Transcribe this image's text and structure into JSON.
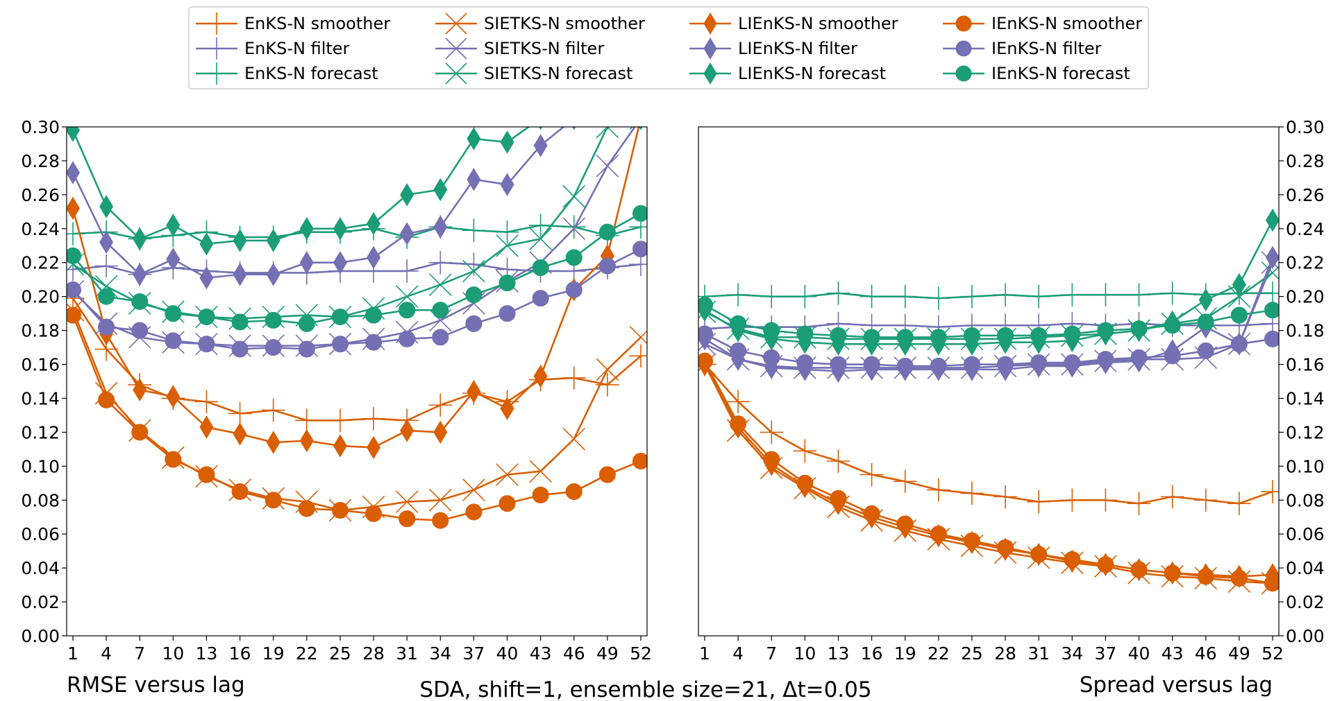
{
  "colors": {
    "smoother": "#d95f02",
    "filter": "#7570b3",
    "forecast": "#1b9e77"
  },
  "marker_icons": {
    "EnKS-N": "plus-marker",
    "SIETKS-N": "x-marker",
    "LIEnKS-N": "thin-diamond-marker",
    "IEnKS-N": "circle-marker"
  },
  "legend": [
    {
      "label": "EnKS-N smoother",
      "method": "EnKS-N",
      "kind": "smoother"
    },
    {
      "label": "EnKS-N filter",
      "method": "EnKS-N",
      "kind": "filter"
    },
    {
      "label": "EnKS-N forecast",
      "method": "EnKS-N",
      "kind": "forecast"
    },
    {
      "label": "SIETKS-N smoother",
      "method": "SIETKS-N",
      "kind": "smoother"
    },
    {
      "label": "SIETKS-N filter",
      "method": "SIETKS-N",
      "kind": "filter"
    },
    {
      "label": "SIETKS-N forecast",
      "method": "SIETKS-N",
      "kind": "forecast"
    },
    {
      "label": "LIEnKS-N smoother",
      "method": "LIEnKS-N",
      "kind": "smoother"
    },
    {
      "label": "LIEnKS-N filter",
      "method": "LIEnKS-N",
      "kind": "filter"
    },
    {
      "label": "LIEnKS-N forecast",
      "method": "LIEnKS-N",
      "kind": "forecast"
    },
    {
      "label": "IEnKS-N smoother",
      "method": "IEnKS-N",
      "kind": "smoother"
    },
    {
      "label": "IEnKS-N filter",
      "method": "IEnKS-N",
      "kind": "filter"
    },
    {
      "label": "IEnKS-N forecast",
      "method": "IEnKS-N",
      "kind": "forecast"
    }
  ],
  "suptitle": "SDA, shift=1, ensemble size=21, Δt=0.05",
  "chart_data": [
    {
      "type": "line",
      "title": "RMSE versus lag",
      "y_axis_side": "left",
      "x": [
        1,
        4,
        7,
        10,
        13,
        16,
        19,
        22,
        25,
        28,
        31,
        34,
        37,
        40,
        43,
        46,
        49,
        52
      ],
      "xticks": [
        "1",
        "4",
        "7",
        "10",
        "13",
        "16",
        "19",
        "22",
        "25",
        "28",
        "31",
        "34",
        "37",
        "40",
        "43",
        "46",
        "49",
        "52"
      ],
      "ylim": [
        0.0,
        0.3
      ],
      "yticks": [
        "0.00",
        "0.02",
        "0.04",
        "0.06",
        "0.08",
        "0.10",
        "0.12",
        "0.14",
        "0.16",
        "0.18",
        "0.20",
        "0.22",
        "0.24",
        "0.26",
        "0.28",
        "0.30"
      ],
      "series": [
        {
          "name": "EnKS-N smoother",
          "method": "EnKS-N",
          "kind": "smoother",
          "values": [
            0.199,
            0.169,
            0.148,
            0.14,
            0.138,
            0.131,
            0.133,
            0.127,
            0.127,
            0.128,
            0.127,
            0.136,
            0.143,
            0.138,
            0.151,
            0.152,
            0.148,
            0.165
          ]
        },
        {
          "name": "EnKS-N filter",
          "method": "EnKS-N",
          "kind": "filter",
          "values": [
            0.216,
            0.218,
            0.213,
            0.217,
            0.215,
            0.214,
            0.214,
            0.214,
            0.215,
            0.215,
            0.215,
            0.22,
            0.219,
            0.216,
            0.215,
            0.215,
            0.217,
            0.219
          ]
        },
        {
          "name": "EnKS-N forecast",
          "method": "EnKS-N",
          "kind": "forecast",
          "values": [
            0.237,
            0.238,
            0.234,
            0.236,
            0.238,
            0.235,
            0.235,
            0.238,
            0.238,
            0.24,
            0.235,
            0.241,
            0.239,
            0.238,
            0.242,
            0.241,
            0.236,
            0.241
          ]
        },
        {
          "name": "SIETKS-N smoother",
          "method": "SIETKS-N",
          "kind": "smoother",
          "values": [
            0.192,
            0.143,
            0.121,
            0.105,
            0.094,
            0.086,
            0.081,
            0.079,
            0.074,
            0.076,
            0.079,
            0.08,
            0.086,
            0.095,
            0.097,
            0.116,
            0.157,
            0.176
          ]
        },
        {
          "name": "SIETKS-N filter",
          "method": "SIETKS-N",
          "kind": "filter",
          "values": [
            0.203,
            0.184,
            0.176,
            0.173,
            0.172,
            0.171,
            0.171,
            0.171,
            0.172,
            0.175,
            0.179,
            0.186,
            0.196,
            0.209,
            0.22,
            0.24,
            0.277,
            0.305
          ]
        },
        {
          "name": "SIETKS-N forecast",
          "method": "SIETKS-N",
          "kind": "forecast",
          "values": [
            0.219,
            0.206,
            0.196,
            0.191,
            0.188,
            0.187,
            0.188,
            0.189,
            0.188,
            0.193,
            0.2,
            0.207,
            0.215,
            0.23,
            0.234,
            0.259,
            0.3,
            0.305
          ]
        },
        {
          "name": "LIEnKS-N smoother",
          "method": "LIEnKS-N",
          "kind": "smoother",
          "values": [
            0.252,
            0.178,
            0.145,
            0.141,
            0.123,
            0.119,
            0.114,
            0.115,
            0.112,
            0.111,
            0.121,
            0.12,
            0.144,
            0.134,
            0.153,
            0.204,
            0.224,
            0.305
          ]
        },
        {
          "name": "LIEnKS-N filter",
          "method": "LIEnKS-N",
          "kind": "filter",
          "values": [
            0.273,
            0.232,
            0.213,
            0.222,
            0.211,
            0.213,
            0.213,
            0.22,
            0.22,
            0.223,
            0.237,
            0.241,
            0.269,
            0.266,
            0.289,
            0.305,
            0.305,
            0.305
          ]
        },
        {
          "name": "LIEnKS-N forecast",
          "method": "LIEnKS-N",
          "kind": "forecast",
          "values": [
            0.298,
            0.253,
            0.234,
            0.242,
            0.231,
            0.233,
            0.233,
            0.24,
            0.24,
            0.243,
            0.26,
            0.263,
            0.293,
            0.291,
            0.305,
            0.305,
            0.305,
            0.305
          ]
        },
        {
          "name": "IEnKS-N smoother",
          "method": "IEnKS-N",
          "kind": "smoother",
          "values": [
            0.189,
            0.139,
            0.12,
            0.104,
            0.095,
            0.085,
            0.08,
            0.075,
            0.074,
            0.072,
            0.069,
            0.068,
            0.073,
            0.078,
            0.083,
            0.085,
            0.095,
            0.103
          ]
        },
        {
          "name": "IEnKS-N filter",
          "method": "IEnKS-N",
          "kind": "filter",
          "values": [
            0.204,
            0.182,
            0.18,
            0.174,
            0.172,
            0.169,
            0.17,
            0.169,
            0.172,
            0.173,
            0.175,
            0.176,
            0.184,
            0.19,
            0.199,
            0.204,
            0.218,
            0.228
          ]
        },
        {
          "name": "IEnKS-N forecast",
          "method": "IEnKS-N",
          "kind": "forecast",
          "values": [
            0.224,
            0.2,
            0.197,
            0.19,
            0.188,
            0.185,
            0.186,
            0.184,
            0.188,
            0.189,
            0.192,
            0.192,
            0.201,
            0.208,
            0.217,
            0.223,
            0.238,
            0.249
          ]
        }
      ]
    },
    {
      "type": "line",
      "title": "Spread versus lag",
      "y_axis_side": "right",
      "x": [
        1,
        4,
        7,
        10,
        13,
        16,
        19,
        22,
        25,
        28,
        31,
        34,
        37,
        40,
        43,
        46,
        49,
        52
      ],
      "xticks": [
        "1",
        "4",
        "7",
        "10",
        "13",
        "16",
        "19",
        "22",
        "25",
        "28",
        "31",
        "34",
        "37",
        "40",
        "43",
        "46",
        "49",
        "52"
      ],
      "ylim": [
        0.0,
        0.3
      ],
      "yticks": [
        "0.00",
        "0.02",
        "0.04",
        "0.06",
        "0.08",
        "0.10",
        "0.12",
        "0.14",
        "0.16",
        "0.18",
        "0.20",
        "0.22",
        "0.24",
        "0.26",
        "0.28",
        "0.30"
      ],
      "series": [
        {
          "name": "EnKS-N smoother",
          "method": "EnKS-N",
          "kind": "smoother",
          "values": [
            0.16,
            0.138,
            0.12,
            0.109,
            0.103,
            0.095,
            0.091,
            0.086,
            0.084,
            0.082,
            0.079,
            0.08,
            0.08,
            0.078,
            0.082,
            0.08,
            0.078,
            0.085
          ]
        },
        {
          "name": "EnKS-N filter",
          "method": "EnKS-N",
          "kind": "filter",
          "values": [
            0.181,
            0.182,
            0.182,
            0.182,
            0.184,
            0.183,
            0.183,
            0.182,
            0.183,
            0.183,
            0.183,
            0.184,
            0.183,
            0.184,
            0.183,
            0.183,
            0.183,
            0.184
          ]
        },
        {
          "name": "EnKS-N forecast",
          "method": "EnKS-N",
          "kind": "forecast",
          "values": [
            0.2,
            0.201,
            0.2,
            0.2,
            0.202,
            0.2,
            0.2,
            0.199,
            0.2,
            0.201,
            0.2,
            0.201,
            0.201,
            0.201,
            0.202,
            0.201,
            0.202,
            0.202
          ]
        },
        {
          "name": "SIETKS-N smoother",
          "method": "SIETKS-N",
          "kind": "smoother",
          "values": [
            0.16,
            0.121,
            0.099,
            0.087,
            0.076,
            0.068,
            0.062,
            0.057,
            0.053,
            0.049,
            0.046,
            0.043,
            0.041,
            0.037,
            0.035,
            0.034,
            0.032,
            0.031
          ]
        },
        {
          "name": "SIETKS-N filter",
          "method": "SIETKS-N",
          "kind": "filter",
          "values": [
            0.172,
            0.163,
            0.159,
            0.158,
            0.158,
            0.158,
            0.158,
            0.158,
            0.158,
            0.159,
            0.16,
            0.16,
            0.162,
            0.163,
            0.163,
            0.164,
            0.172,
            0.22
          ]
        },
        {
          "name": "SIETKS-N forecast",
          "method": "SIETKS-N",
          "kind": "forecast",
          "values": [
            0.191,
            0.181,
            0.176,
            0.176,
            0.175,
            0.175,
            0.175,
            0.175,
            0.175,
            0.175,
            0.176,
            0.177,
            0.178,
            0.18,
            0.184,
            0.187,
            0.2,
            0.214
          ]
        },
        {
          "name": "LIEnKS-N smoother",
          "method": "LIEnKS-N",
          "kind": "smoother",
          "values": [
            0.16,
            0.123,
            0.101,
            0.088,
            0.078,
            0.07,
            0.064,
            0.059,
            0.055,
            0.051,
            0.048,
            0.044,
            0.042,
            0.039,
            0.037,
            0.036,
            0.035,
            0.036
          ]
        },
        {
          "name": "LIEnKS-N filter",
          "method": "LIEnKS-N",
          "kind": "filter",
          "values": [
            0.175,
            0.163,
            0.158,
            0.157,
            0.156,
            0.157,
            0.157,
            0.157,
            0.157,
            0.157,
            0.159,
            0.159,
            0.161,
            0.162,
            0.168,
            0.182,
            0.172,
            0.223
          ]
        },
        {
          "name": "LIEnKS-N forecast",
          "method": "LIEnKS-N",
          "kind": "forecast",
          "values": [
            0.192,
            0.18,
            0.175,
            0.173,
            0.172,
            0.172,
            0.172,
            0.172,
            0.172,
            0.173,
            0.173,
            0.174,
            0.178,
            0.18,
            0.185,
            0.198,
            0.207,
            0.245
          ]
        },
        {
          "name": "IEnKS-N smoother",
          "method": "IEnKS-N",
          "kind": "smoother",
          "values": [
            0.162,
            0.125,
            0.104,
            0.09,
            0.081,
            0.072,
            0.066,
            0.06,
            0.056,
            0.052,
            0.048,
            0.045,
            0.042,
            0.039,
            0.037,
            0.035,
            0.034,
            0.031
          ]
        },
        {
          "name": "IEnKS-N filter",
          "method": "IEnKS-N",
          "kind": "filter",
          "values": [
            0.178,
            0.168,
            0.164,
            0.161,
            0.16,
            0.16,
            0.159,
            0.159,
            0.16,
            0.16,
            0.161,
            0.161,
            0.163,
            0.164,
            0.165,
            0.168,
            0.172,
            0.175
          ]
        },
        {
          "name": "IEnKS-N forecast",
          "method": "IEnKS-N",
          "kind": "forecast",
          "values": [
            0.195,
            0.184,
            0.18,
            0.178,
            0.177,
            0.176,
            0.176,
            0.176,
            0.177,
            0.177,
            0.177,
            0.178,
            0.18,
            0.181,
            0.183,
            0.185,
            0.189,
            0.192
          ]
        }
      ]
    }
  ]
}
